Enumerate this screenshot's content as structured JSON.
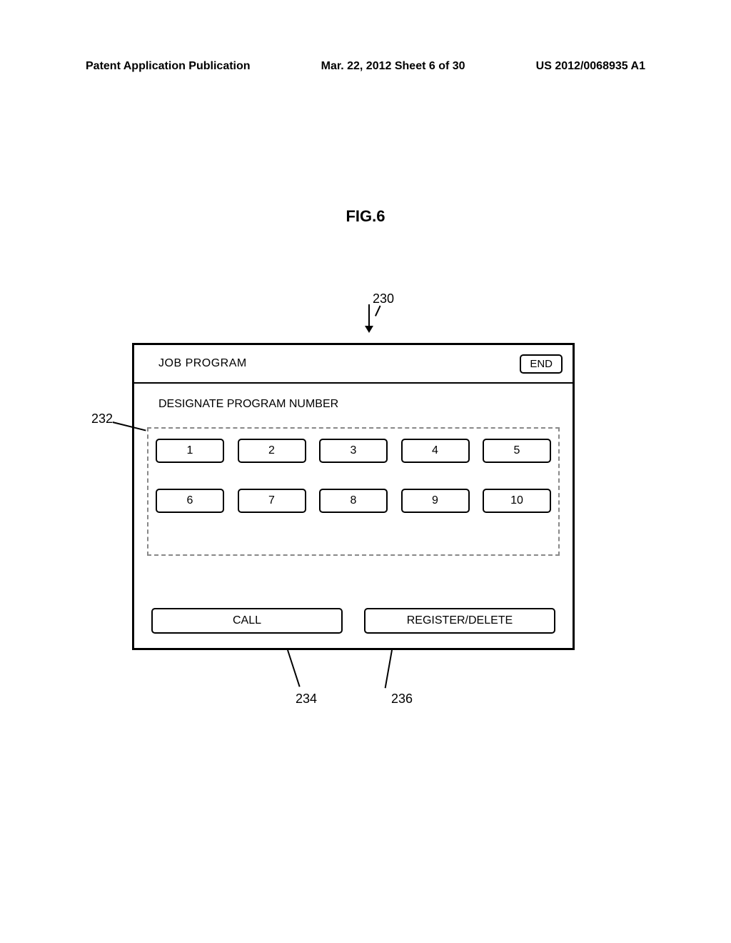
{
  "header": {
    "left": "Patent Application Publication",
    "center": "Mar. 22, 2012  Sheet 6 of 30",
    "right": "US 2012/0068935 A1"
  },
  "figure": {
    "label": "FIG.6",
    "panel_ref": "230",
    "title": "JOB PROGRAM",
    "end_label": "END",
    "subtitle": "DESIGNATE PROGRAM NUMBER",
    "numbers_ref": "232",
    "numbers": {
      "row1": [
        "1",
        "2",
        "3",
        "4",
        "5"
      ],
      "row2": [
        "6",
        "7",
        "8",
        "9",
        "10"
      ]
    },
    "call": {
      "label": "CALL",
      "ref": "234"
    },
    "regdel": {
      "label": "REGISTER/DELETE",
      "ref": "236"
    }
  }
}
